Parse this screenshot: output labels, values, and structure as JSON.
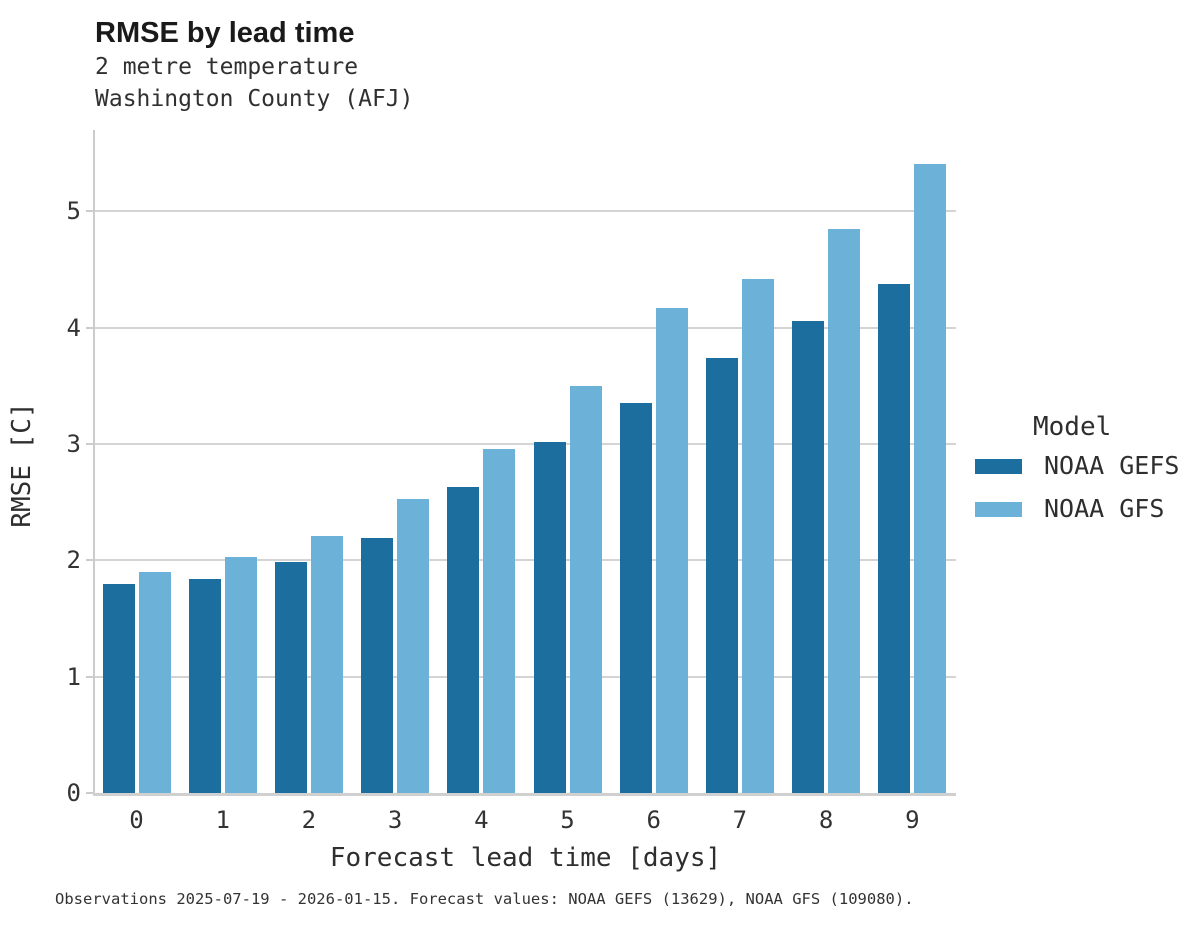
{
  "header": {
    "title": "RMSE by lead time",
    "subtitle_line1": "2 metre temperature",
    "subtitle_line2": "Washington County (AFJ)"
  },
  "chart_data": {
    "type": "bar",
    "title": "RMSE by lead time",
    "subtitle": [
      "2 metre temperature",
      "Washington County (AFJ)"
    ],
    "categories": [
      "0",
      "1",
      "2",
      "3",
      "4",
      "5",
      "6",
      "7",
      "8",
      "9"
    ],
    "series": [
      {
        "name": "NOAA GEFS",
        "color": "#1c6e9e",
        "values": [
          1.8,
          1.84,
          1.99,
          2.19,
          2.63,
          3.02,
          3.35,
          3.74,
          4.06,
          4.38
        ]
      },
      {
        "name": "NOAA GFS",
        "color": "#6cb1d8",
        "values": [
          1.9,
          2.03,
          2.21,
          2.53,
          2.96,
          3.5,
          4.17,
          4.42,
          4.85,
          5.41
        ]
      }
    ],
    "xlabel": "Forecast lead time [days]",
    "ylabel": "RMSE [C]",
    "ylim": [
      0,
      5.7
    ],
    "yticks": [
      0,
      1,
      2,
      3,
      4,
      5
    ],
    "grid": true,
    "legend_title": "Model",
    "legend_position": "right-center"
  },
  "legend": {
    "title": "Model",
    "items": [
      {
        "label": "NOAA GEFS",
        "color": "#1c6e9e"
      },
      {
        "label": "NOAA GFS",
        "color": "#6cb1d8"
      }
    ]
  },
  "footer": {
    "text": "Observations 2025-07-19 - 2026-01-15. Forecast values: NOAA GEFS (13629), NOAA GFS (109080)."
  }
}
